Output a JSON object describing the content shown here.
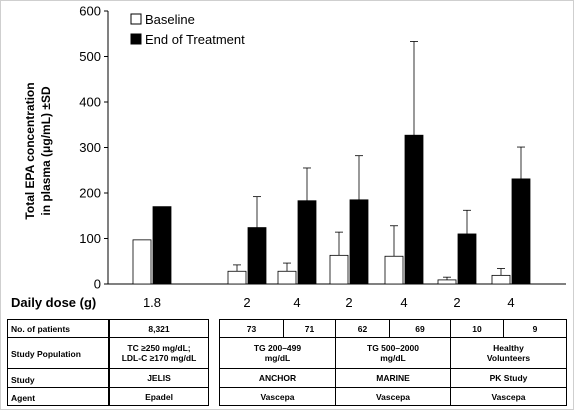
{
  "chart_data": {
    "type": "bar",
    "ylabel_line1": "Total  EPA concentration",
    "ylabel_line2": "in plasma (μg/mL) ±SD",
    "ylim": [
      0,
      600
    ],
    "yticks": [
      "0",
      "100",
      "200",
      "300",
      "400",
      "500",
      "600"
    ],
    "legend_position": "top-left",
    "grid": false,
    "series": [
      {
        "name": "Baseline",
        "color": "#ffffff"
      },
      {
        "name": "End of Treatment",
        "color": "#000000"
      }
    ],
    "groups": [
      {
        "dose": "1.8",
        "baseline": 97,
        "end": 170,
        "baseline_sd": null,
        "end_sd": null
      },
      {
        "dose": "2",
        "baseline": 28,
        "end": 124,
        "baseline_sd": 14,
        "end_sd": 68
      },
      {
        "dose": "4",
        "baseline": 28,
        "end": 183,
        "baseline_sd": 18,
        "end_sd": 72
      },
      {
        "dose": "2",
        "baseline": 63,
        "end": 185,
        "baseline_sd": 51,
        "end_sd": 97
      },
      {
        "dose": "4",
        "baseline": 61,
        "end": 327,
        "baseline_sd": 67,
        "end_sd": 206
      },
      {
        "dose": "2",
        "baseline": 9,
        "end": 110,
        "baseline_sd": 6,
        "end_sd": 52
      },
      {
        "dose": "4",
        "baseline": 19,
        "end": 231,
        "baseline_sd": 15,
        "end_sd": 70
      }
    ]
  },
  "daily_dose_label": "Daily dose (g)",
  "table": {
    "row_labels": {
      "patients": "No. of patients",
      "population": "Study Population",
      "study": "Study",
      "agent": "Agent"
    },
    "jelis": {
      "patients": "8,321",
      "population_line1": "TC ≥250 mg/dL;",
      "population_line2": "LDL-C ≥170 mg/dL",
      "study": "JELIS",
      "agent": "Epadel"
    },
    "anchor": {
      "patients": [
        "73",
        "71"
      ],
      "population_line1": "TG 200–499",
      "population_line2": "mg/dL",
      "study": "ANCHOR"
    },
    "marine": {
      "patients": [
        "62",
        "69"
      ],
      "population_line1": "TG 500–2000",
      "population_line2": "mg/dL",
      "study": "MARINE"
    },
    "pk": {
      "patients": [
        "10",
        "9"
      ],
      "population_line1": "Healthy",
      "population_line2": "Volunteers",
      "study": "PK Study"
    },
    "vascepa_agent": "Vascepa"
  }
}
